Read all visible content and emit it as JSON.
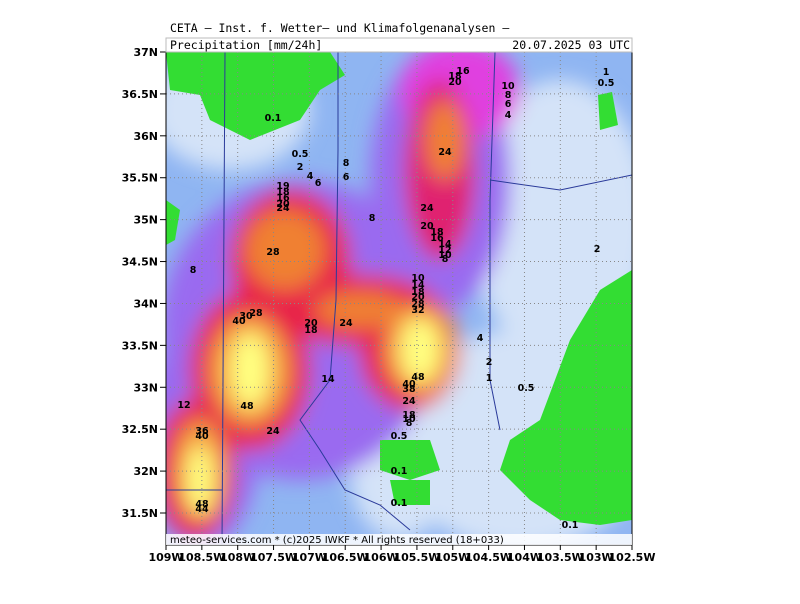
{
  "header": {
    "title": "CETA — Inst. f. Wetter— und Klimafolgenanalysen —",
    "variable": "Precipitation [mm/24h]",
    "time": "20.07.2025 03 UTC"
  },
  "footer": "meteo-services.com * (c)2025 IWKF * All rights reserved (18+033)",
  "lat_labels": [
    "37N",
    "36.5N",
    "36N",
    "35.5N",
    "35N",
    "34.5N",
    "34N",
    "33.5N",
    "33N",
    "32.5N",
    "32N",
    "31.5N"
  ],
  "lon_labels": [
    "109W",
    "108.5W",
    "108W",
    "107.5W",
    "107W",
    "106.5W",
    "106W",
    "105.5W",
    "105W",
    "104.5W",
    "104W",
    "103.5W",
    "103W",
    "102.5W"
  ],
  "contour_labels": [
    "16",
    "18",
    "20",
    "10",
    "1",
    "0.5",
    "8",
    "6",
    "4",
    "0.1",
    "0.5",
    "2",
    "4",
    "6",
    "8",
    "6",
    "24",
    "19",
    "18",
    "16",
    "20",
    "24",
    "8",
    "24",
    "20",
    "18",
    "16",
    "14",
    "12",
    "10",
    "8",
    "28",
    "8",
    "2",
    "10",
    "14",
    "18",
    "20",
    "28",
    "32",
    "24",
    "28",
    "30",
    "40",
    "20",
    "18",
    "4",
    "2",
    "1",
    "0.5",
    "14",
    "48",
    "40",
    "38",
    "12",
    "48",
    "24",
    "18",
    "10",
    "8",
    "0.5",
    "24",
    "36",
    "40",
    "0.1",
    "48",
    "44",
    "0.1",
    "0.1"
  ]
}
